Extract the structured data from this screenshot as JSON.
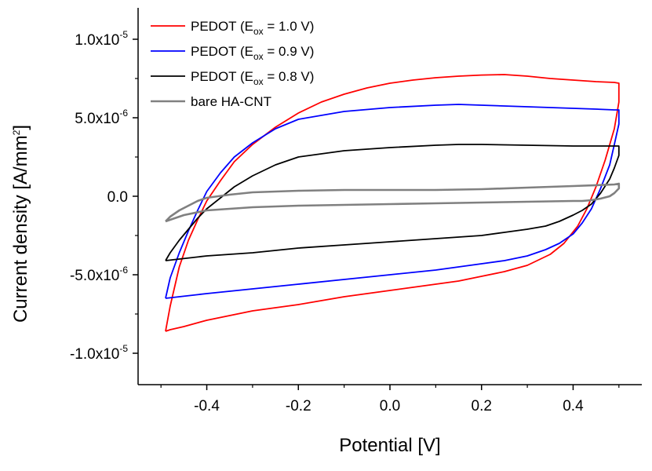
{
  "chart_data": {
    "type": "line",
    "title": "",
    "xlabel": "Potential [V]",
    "ylabel_text": "Current density [A/mm",
    "ylabel_sup": "2",
    "ylabel_close": "]",
    "xlim": [
      -0.55,
      0.55
    ],
    "ylim": [
      -1.2e-05,
      1.2e-05
    ],
    "xticks": [
      {
        "value": -0.4,
        "label": "-0.4"
      },
      {
        "value": -0.2,
        "label": "-0.2"
      },
      {
        "value": 0.0,
        "label": "0.0"
      },
      {
        "value": 0.2,
        "label": "0.2"
      },
      {
        "value": 0.4,
        "label": "0.4"
      }
    ],
    "yticks": [
      {
        "value": 1e-05,
        "mantissa": "1.0x10",
        "exp": "-5"
      },
      {
        "value": 5e-06,
        "mantissa": "5.0x10",
        "exp": "-6"
      },
      {
        "value": 0.0,
        "mantissa": "0.0",
        "exp": ""
      },
      {
        "value": -5e-06,
        "mantissa": "-5.0x10",
        "exp": "-6"
      },
      {
        "value": -1e-05,
        "mantissa": "-1.0x10",
        "exp": "-5"
      }
    ],
    "legend_position": "top-left",
    "series": [
      {
        "name": "PEDOT (Eox = 1.0 V)",
        "legend_prefix": "PEDOT (E",
        "legend_sub": "ox",
        "legend_suffix": " = 1.0 V)",
        "color": "#ff0000",
        "x": [
          -0.49,
          -0.48,
          -0.46,
          -0.44,
          -0.42,
          -0.4,
          -0.37,
          -0.34,
          -0.3,
          -0.25,
          -0.2,
          -0.15,
          -0.1,
          -0.05,
          0.0,
          0.05,
          0.1,
          0.15,
          0.2,
          0.25,
          0.3,
          0.35,
          0.4,
          0.45,
          0.49,
          0.5,
          0.5,
          0.49,
          0.47,
          0.45,
          0.43,
          0.41,
          0.38,
          0.35,
          0.3,
          0.25,
          0.2,
          0.15,
          0.1,
          0.05,
          0.0,
          -0.05,
          -0.1,
          -0.2,
          -0.3,
          -0.4,
          -0.45,
          -0.48,
          -0.49,
          -0.49
        ],
        "y": [
          -8.6e-06,
          -7e-06,
          -4.5e-06,
          -2.8e-06,
          -1.5e-06,
          -3e-07,
          1e-06,
          2.2e-06,
          3.3e-06,
          4.4e-06,
          5.3e-06,
          6e-06,
          6.5e-06,
          6.9e-06,
          7.2e-06,
          7.4e-06,
          7.55e-06,
          7.65e-06,
          7.72e-06,
          7.75e-06,
          7.65e-06,
          7.5e-06,
          7.4e-06,
          7.3e-06,
          7.25e-06,
          7.2e-06,
          6e-06,
          4.3e-06,
          2.3e-06,
          6e-07,
          -8e-07,
          -1.9e-06,
          -3e-06,
          -3.7e-06,
          -4.4e-06,
          -4.8e-06,
          -5.1e-06,
          -5.4e-06,
          -5.6e-06,
          -5.8e-06,
          -6e-06,
          -6.2e-06,
          -6.4e-06,
          -6.9e-06,
          -7.3e-06,
          -7.9e-06,
          -8.3e-06,
          -8.5e-06,
          -8.6e-06,
          -8.6e-06
        ]
      },
      {
        "name": "PEDOT (Eox = 0.9 V)",
        "legend_prefix": "PEDOT (E",
        "legend_sub": "ox",
        "legend_suffix": " = 0.9 V)",
        "color": "#0000ff",
        "x": [
          -0.49,
          -0.48,
          -0.46,
          -0.44,
          -0.42,
          -0.4,
          -0.37,
          -0.34,
          -0.3,
          -0.25,
          -0.2,
          -0.1,
          0.0,
          0.1,
          0.15,
          0.2,
          0.3,
          0.4,
          0.45,
          0.49,
          0.5,
          0.5,
          0.49,
          0.48,
          0.46,
          0.44,
          0.42,
          0.4,
          0.37,
          0.34,
          0.3,
          0.25,
          0.2,
          0.1,
          0.0,
          -0.1,
          -0.2,
          -0.3,
          -0.4,
          -0.46,
          -0.49
        ],
        "y": [
          -6.5e-06,
          -5.2e-06,
          -3.6e-06,
          -2.2e-06,
          -9e-07,
          3e-07,
          1.5e-06,
          2.5e-06,
          3.4e-06,
          4.3e-06,
          4.9e-06,
          5.4e-06,
          5.65e-06,
          5.8e-06,
          5.85e-06,
          5.8e-06,
          5.7e-06,
          5.6e-06,
          5.55e-06,
          5.5e-06,
          5.5e-06,
          4.6e-06,
          3.3e-06,
          2e-06,
          5e-07,
          -8e-07,
          -1.7e-06,
          -2.4e-06,
          -3e-06,
          -3.4e-06,
          -3.8e-06,
          -4.1e-06,
          -4.3e-06,
          -4.7e-06,
          -5e-06,
          -5.3e-06,
          -5.6e-06,
          -5.9e-06,
          -6.2e-06,
          -6.4e-06,
          -6.5e-06
        ]
      },
      {
        "name": "PEDOT (Eox = 0.8 V)",
        "legend_prefix": "PEDOT (E",
        "legend_sub": "ox",
        "legend_suffix": " = 0.8 V)",
        "color": "#000000",
        "x": [
          -0.49,
          -0.48,
          -0.46,
          -0.44,
          -0.42,
          -0.4,
          -0.37,
          -0.34,
          -0.3,
          -0.25,
          -0.2,
          -0.1,
          0.0,
          0.1,
          0.15,
          0.2,
          0.3,
          0.4,
          0.45,
          0.49,
          0.5,
          0.5,
          0.49,
          0.48,
          0.46,
          0.44,
          0.42,
          0.4,
          0.37,
          0.34,
          0.3,
          0.25,
          0.2,
          0.1,
          0.0,
          -0.1,
          -0.2,
          -0.3,
          -0.4,
          -0.46,
          -0.49
        ],
        "y": [
          -4.1e-06,
          -3.6e-06,
          -2.8e-06,
          -2.1e-06,
          -1.4e-06,
          -8e-07,
          -1e-07,
          6e-07,
          1.3e-06,
          2e-06,
          2.5e-06,
          2.9e-06,
          3.1e-06,
          3.25e-06,
          3.3e-06,
          3.3e-06,
          3.25e-06,
          3.2e-06,
          3.2e-06,
          3.2e-06,
          3.2e-06,
          2.6e-06,
          1.8e-06,
          1.1e-06,
          2e-07,
          -5e-07,
          -9e-07,
          -1.2e-06,
          -1.6e-06,
          -1.9e-06,
          -2.1e-06,
          -2.3e-06,
          -2.5e-06,
          -2.7e-06,
          -2.9e-06,
          -3.1e-06,
          -3.3e-06,
          -3.6e-06,
          -3.8e-06,
          -4e-06,
          -4.1e-06
        ]
      },
      {
        "name": "bare HA-CNT",
        "legend_prefix": "bare HA-CNT",
        "legend_sub": "",
        "legend_suffix": "",
        "color": "#808080",
        "x": [
          -0.49,
          -0.48,
          -0.46,
          -0.44,
          -0.42,
          -0.4,
          -0.35,
          -0.3,
          -0.2,
          -0.1,
          0.0,
          0.1,
          0.2,
          0.3,
          0.4,
          0.49,
          0.5,
          0.5,
          0.49,
          0.48,
          0.46,
          0.44,
          0.42,
          0.4,
          0.3,
          0.2,
          0.1,
          0.0,
          -0.1,
          -0.2,
          -0.3,
          -0.4,
          -0.45,
          -0.49
        ],
        "y": [
          -1.6e-06,
          -1.3e-06,
          -9e-07,
          -6e-07,
          -3e-07,
          -1e-07,
          1e-07,
          2.5e-07,
          3.5e-07,
          4e-07,
          4e-07,
          4e-07,
          4.5e-07,
          5.5e-07,
          6.5e-07,
          7.5e-07,
          8e-07,
          5e-07,
          2e-07,
          0.0,
          -1.5e-07,
          -2.5e-07,
          -3e-07,
          -3e-07,
          -3.5e-07,
          -4e-07,
          -4.5e-07,
          -5e-07,
          -5.5e-07,
          -6e-07,
          -7e-07,
          -9e-07,
          -1.2e-06,
          -1.6e-06
        ]
      }
    ]
  }
}
